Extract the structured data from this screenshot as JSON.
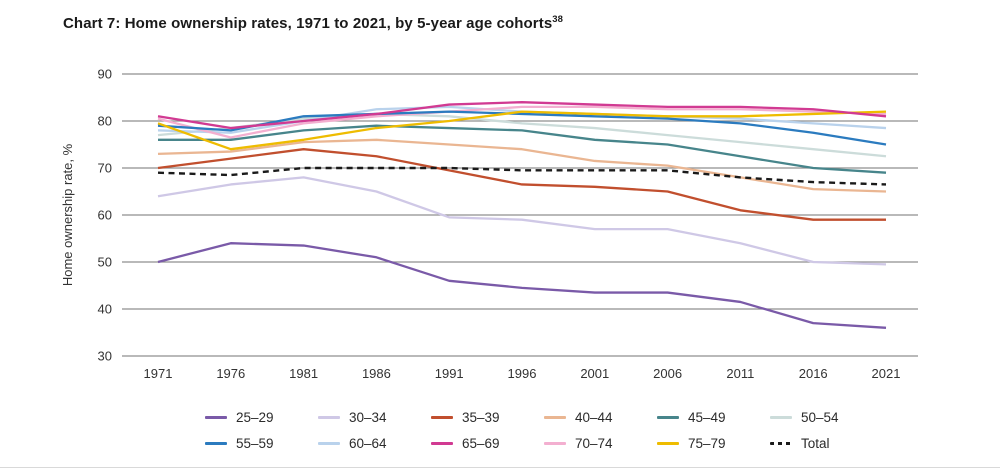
{
  "title": {
    "text": "Chart 7: Home ownership rates, 1971 to 2021, by 5-year age cohorts",
    "superscript": "38"
  },
  "chart_data": {
    "type": "line",
    "title": "Chart 7: Home ownership rates, 1971 to 2021, by 5-year age cohorts",
    "xlabel": "",
    "ylabel": "Home ownership rate, %",
    "ylim": [
      30,
      90
    ],
    "yticks": [
      90,
      80,
      70,
      60,
      50,
      40,
      30
    ],
    "grid": "horizontal gridlines only",
    "legend_position": "bottom, two rows",
    "x": [
      1971,
      1976,
      1981,
      1986,
      1991,
      1996,
      2001,
      2006,
      2011,
      2016,
      2021
    ],
    "series": [
      {
        "name": "25–29",
        "color": "#7a5aa8",
        "dash": false,
        "values": [
          50,
          54,
          53.5,
          51,
          46,
          44.5,
          43.5,
          43.5,
          41.5,
          37,
          36
        ]
      },
      {
        "name": "30–34",
        "color": "#cfc8e6",
        "dash": false,
        "values": [
          64,
          66.5,
          68,
          65,
          59.5,
          59,
          57,
          57,
          54,
          50,
          49.5
        ]
      },
      {
        "name": "35–39",
        "color": "#c14f2e",
        "dash": false,
        "values": [
          70,
          72,
          74,
          72.5,
          69.5,
          66.5,
          66,
          65,
          61,
          59,
          59
        ]
      },
      {
        "name": "40–44",
        "color": "#eab692",
        "dash": false,
        "values": [
          73,
          73.5,
          75.5,
          76,
          75,
          74,
          71.5,
          70.5,
          68,
          65.5,
          65
        ]
      },
      {
        "name": "45–49",
        "color": "#47858b",
        "dash": false,
        "values": [
          76,
          76,
          78,
          79,
          78.5,
          78,
          76,
          75,
          72.5,
          70,
          69
        ]
      },
      {
        "name": "50–54",
        "color": "#ccdcda",
        "dash": false,
        "values": [
          77,
          78.5,
          80.5,
          81.5,
          81,
          79.5,
          78.5,
          77,
          75.5,
          74,
          72.5
        ]
      },
      {
        "name": "55–59",
        "color": "#2b7bbf",
        "dash": false,
        "values": [
          79,
          78,
          81,
          81.5,
          82,
          81.5,
          81,
          80.5,
          79.5,
          77.5,
          75
        ]
      },
      {
        "name": "60–64",
        "color": "#b9d2ec",
        "dash": false,
        "values": [
          78,
          77.5,
          80,
          82.5,
          83,
          82,
          81.5,
          81,
          80.5,
          79.5,
          78.5
        ]
      },
      {
        "name": "65–69",
        "color": "#d13a92",
        "dash": false,
        "values": [
          81,
          78.5,
          80,
          81.5,
          83.5,
          84,
          83.5,
          83,
          83,
          82.5,
          81
        ]
      },
      {
        "name": "70–74",
        "color": "#f3afd0",
        "dash": false,
        "values": [
          80.5,
          76.5,
          79.5,
          81,
          82,
          83,
          83,
          82.5,
          82.5,
          82,
          81.5
        ]
      },
      {
        "name": "75–79",
        "color": "#eebc00",
        "dash": false,
        "values": [
          79.5,
          74,
          76,
          78.5,
          80,
          82,
          81.5,
          81,
          81,
          81.5,
          82
        ]
      },
      {
        "name": "Total",
        "color": "#1a1a1a",
        "dash": true,
        "values": [
          69,
          68.5,
          70,
          70,
          70,
          69.5,
          69.5,
          69.5,
          68,
          67,
          66.5
        ]
      }
    ],
    "style": {
      "gridline_color": "#8f8f8f",
      "tick_label_color": "#333333",
      "axis_title_color": "#333333"
    }
  }
}
